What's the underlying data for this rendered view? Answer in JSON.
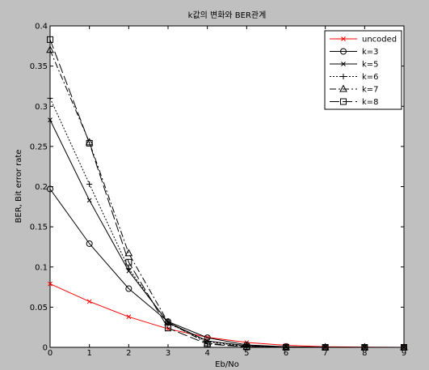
{
  "chart_data": {
    "type": "line",
    "title": "k값의 변화와 BER관계",
    "xlabel": "Eb/No",
    "ylabel": "BER, Bit error rate",
    "xlim": [
      0,
      9
    ],
    "ylim": [
      0,
      0.4
    ],
    "x_ticks": [
      "0",
      "1",
      "2",
      "3",
      "4",
      "5",
      "6",
      "7",
      "8",
      "9"
    ],
    "y_ticks": [
      "0",
      "0.05",
      "0.1",
      "0.15",
      "0.2",
      "0.25",
      "0.3",
      "0.35",
      "0.4"
    ],
    "grid": false,
    "legend_position": "top-right",
    "x": [
      0,
      1,
      2,
      3,
      4,
      5,
      6,
      7,
      8,
      9
    ],
    "series": [
      {
        "name": "uncoded",
        "color": "#ff0000",
        "marker": "x",
        "dash": "solid",
        "values": [
          0.079,
          0.057,
          0.038,
          0.023,
          0.0125,
          0.006,
          0.0025,
          0.0008,
          0.0002,
          3e-05
        ]
      },
      {
        "name": "k=3",
        "color": "#000000",
        "marker": "o",
        "dash": "solid",
        "values": [
          0.197,
          0.129,
          0.073,
          0.032,
          0.012,
          0.003,
          0.0008,
          0.0001,
          1e-05,
          0
        ]
      },
      {
        "name": "k=5",
        "color": "#000000",
        "marker": "x",
        "dash": "solid",
        "values": [
          0.283,
          0.183,
          0.095,
          0.031,
          0.008,
          0.002,
          0.0004,
          5e-05,
          0,
          0
        ]
      },
      {
        "name": "k=6",
        "color": "#000000",
        "marker": "+",
        "dash": "dotted",
        "values": [
          0.31,
          0.203,
          0.098,
          0.03,
          0.007,
          0.001,
          0.0002,
          0,
          0,
          0
        ]
      },
      {
        "name": "k=7",
        "color": "#000000",
        "marker": "triangle",
        "dash": "dashdot",
        "values": [
          0.37,
          0.255,
          0.117,
          0.031,
          0.005,
          0.0008,
          0.0001,
          0,
          0,
          0
        ]
      },
      {
        "name": "k=8",
        "color": "#000000",
        "marker": "square",
        "dash": "longdash",
        "values": [
          0.383,
          0.254,
          0.106,
          0.024,
          0.004,
          0.0005,
          5e-05,
          0,
          0,
          0
        ]
      }
    ]
  }
}
